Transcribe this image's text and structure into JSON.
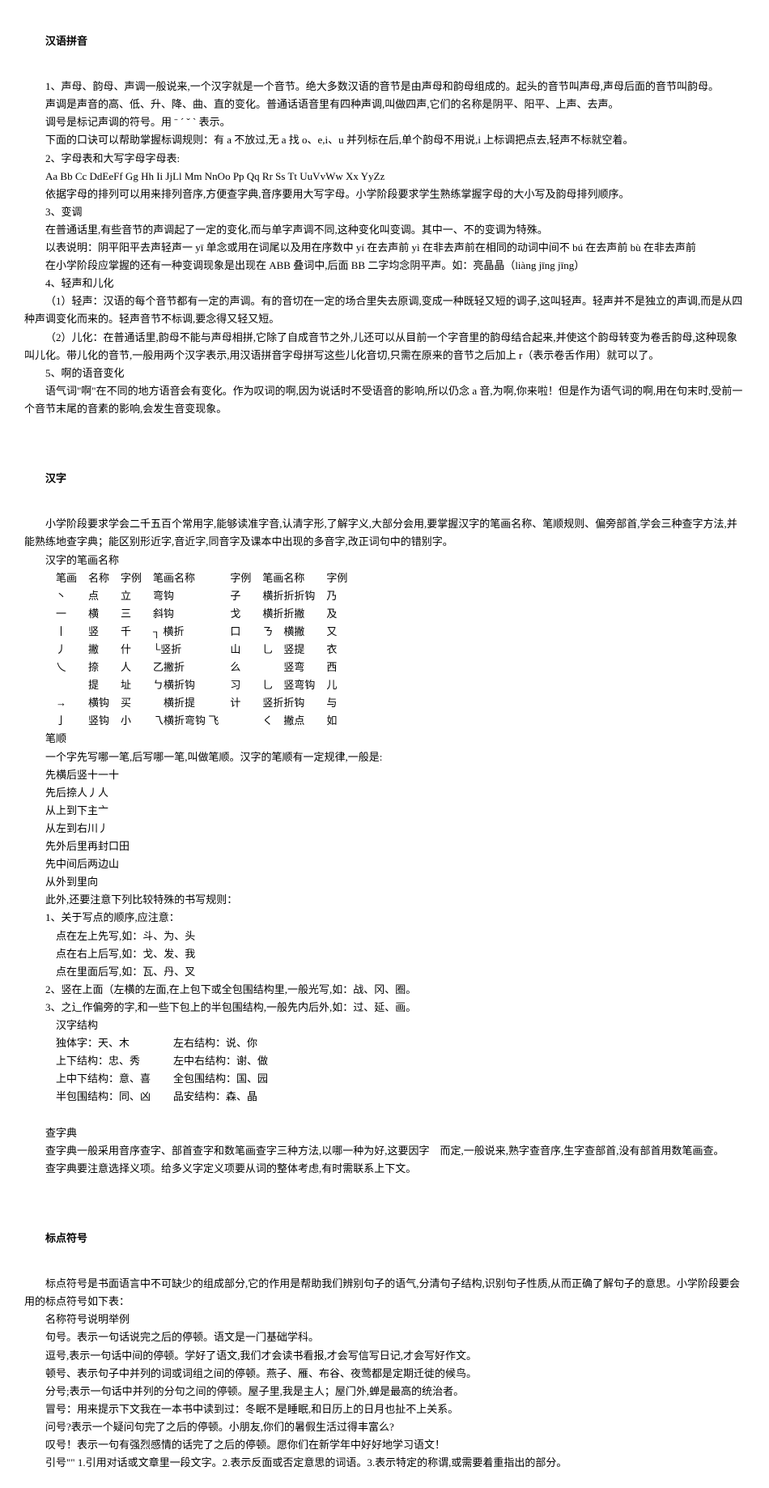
{
  "sections": {
    "pinyin": {
      "title": "汉语拼音",
      "p1": "1、声母、韵母、声调一般说来,一个汉字就是一个音节。绝大多数汉语的音节是由声母和韵母组成的。起头的音节叫声母,声母后面的音节叫韵母。",
      "p2": "声调是声音的高、低、升、降、曲、直的变化。普通话语音里有四种声调,叫做四声,它们的名称是阴平、阳平、上声、去声。",
      "p3": "调号是标记声调的符号。用 ˉ ˊ ˇ ˋ 表示。",
      "p4": "下面的口诀可以帮助掌握标调规则：有 a 不放过,无 a 找 o、e,i、u 并列标在后,单个韵母不用说,i 上标调把点去,轻声不标就空着。",
      "p5": "2、字母表和大写字母字母表:",
      "p6": "Aa Bb Cc DdEeFf Gg Hh Ii JjLl Mm NnOo Pp Qq Rr Ss Tt UuVvWw Xx YyZz",
      "p7": "依据字母的排列可以用来排列音序,方便查字典,音序要用大写字母。小学阶段要求学生熟练掌握字母的大小写及韵母排列顺序。",
      "p8": "3、变调",
      "p9": "在普通话里,有些音节的声调起了一定的变化,而与单字声调不同,这种变化叫变调。其中一、不的变调为特殊。",
      "p10": "以表说明：阴平阳平去声轻声一 yī 单念或用在词尾以及用在序数中 yí 在去声前 yì 在非去声前在相同的动词中间不 bú 在去声前 bù 在非去声前",
      "p11": "在小学阶段应掌握的还有一种变调现象是出现在 ABB 叠词中,后面 BB 二字均念阴平声。如：亮晶晶（liàng jīng jīng）",
      "p12": "4、轻声和儿化",
      "p13": "（1）轻声：汉语的每个音节都有一定的声调。有的音切在一定的场合里失去原调,变成一种既轻又短的调子,这叫轻声。轻声并不是独立的声调,而是从四种声调变化而来的。轻声音节不标调,要念得又轻又短。",
      "p14": "（2）儿化：在普通话里,韵母不能与声母相拼,它除了自成音节之外,儿还可以从目前一个字音里的韵母结合起来,并使这个韵母转变为卷舌韵母,这种现象叫儿化。带儿化的音节,一般用两个汉字表示,用汉语拼音字母拼写这些儿化音切,只需在原来的音节之后加上 r（表示卷舌作用）就可以了。",
      "p15": "5、啊的语音变化",
      "p16": "语气词\"啊\"在不同的地方语音会有变化。作为叹词的啊,因为说话时不受语音的影响,所以仍念 a 音,为啊,你来啦！但是作为语气词的啊,用在句末时,受前一个音节末尾的音素的影响,会发生音变现象。"
    },
    "hanzi": {
      "title": "汉字",
      "intro1": "小学阶段要求学会二千五百个常用字,能够读准字音,认清字形,了解字义,大部分会用,要掌握汉字的笔画名称、笔顺规则、偏旁部首,学会三种查字方法,并能熟练地查字典；能区别形近字,音近字,同音字及课本中出现的多音字,改正词句中的错别字。",
      "bihua_label": "汉字的笔画名称",
      "table_head": [
        "笔画",
        "名称",
        "字例",
        "笔画名称",
        "字例",
        "笔画名称",
        "字例"
      ],
      "table_rows": [
        [
          "丶",
          "点",
          "立",
          "弯钩",
          "子",
          "横折折折钩",
          "乃"
        ],
        [
          "一",
          "横",
          "三",
          "斜钩",
          "戈",
          "横折折撇",
          "及"
        ],
        [
          "丨",
          "竖",
          "千",
          "┐ 横折",
          "口",
          "ㄋ　横撇",
          "又"
        ],
        [
          "丿",
          "撇",
          "什",
          "└竖折",
          "山",
          "乚　竖提",
          "衣"
        ],
        [
          "乀",
          "捺",
          "人",
          "乙撇折",
          "么",
          "　　竖弯",
          "西"
        ],
        [
          "",
          "提",
          "址",
          "ㄅ横折钩",
          "习",
          "乚　竖弯钩",
          "儿"
        ],
        [
          "→",
          "横钩",
          "买",
          "　横折提",
          "计",
          "竖折折钩",
          "与"
        ],
        [
          "亅",
          "竖钩",
          "小",
          "乁横折弯钩 飞",
          "",
          "く　撇点",
          "如"
        ]
      ],
      "bishun_label": "笔顺",
      "bishun_intro": "一个字先写哪一笔,后写哪一笔,叫做笔顺。汉字的笔顺有一定规律,一般是:",
      "rules": [
        "先横后竖十一十",
        "先后捺人丿人",
        "从上到下主亠",
        "从左到右川丿",
        "先外后里再封口田",
        "先中间后两边山",
        "从外到里向"
      ],
      "special_intro": "此外,还要注意下列比较特殊的书写规则：",
      "sp1": "1、关于写点的顺序,应注意：",
      "sp1a": "点在左上先写,如：斗、为、头",
      "sp1b": "点在右上后写,如：戈、发、我",
      "sp1c": "点在里面后写,如：瓦、丹、叉",
      "sp2": "2、竖在上面（左横的左面,在上包下或全包围结构里,一般光写,如：战、冈、圈。",
      "sp3": "3、之辶作偏旁的字,和一些下包上的半包围结构,一般先内后外,如：过、延、画。",
      "struct_label": "汉字结构",
      "struct": [
        [
          "独体字：天、木",
          "左右结构：说、你"
        ],
        [
          "上下结构：忠、秀",
          "左中右结构：谢、做"
        ],
        [
          "上中下结构：意、喜",
          "全包围结构：国、园"
        ],
        [
          "半包围结构：同、凶",
          "品安结构：森、晶"
        ]
      ],
      "cz_label": "查字典",
      "cz1": "查字典一般采用音序查字、部首查字和数笔画查字三种方法,以哪一种为好,这要因字　而定,一般说来,熟字查音序,生字查部首,没有部首用数笔画查。",
      "cz2": "查字典要注意选择义项。给多义字定义项要从词的整体考虑,有时需联系上下文。"
    },
    "biaodian": {
      "title": "标点符号",
      "intro": "标点符号是书面语言中不可缺少的组成部分,它的作用是帮助我们辨别句子的语气,分清句子结构,识别句子性质,从而正确了解句子的意思。小学阶段要会用的标点符号如下表：",
      "head": "名称符号说明举例",
      "items": [
        "句号。表示一句话说完之后的停顿。语文是一门基础学科。",
        "逗号,表示一句话中间的停顿。学好了语文,我们才会读书看报,才会写信写日记,才会写好作文。",
        "顿号、表示句子中并列的词或词组之间的停顿。燕子、雁、布谷、夜莺都是定期迁徙的候鸟。",
        "分号;表示一句话中并列的分句之间的停顿。屋子里,我是主人；屋门外,蝉是最高的统治者。",
        "冒号：用来提示下文我在一本书中读到过：冬眠不是睡眠,和日历上的日月也扯不上关系。",
        "问号?表示一个疑问句完了之后的停顿。小朋友,你们的暑假生活过得丰富么?",
        "叹号！表示一句有强烈感情的话完了之后的停顿。愿你们在新学年中好好地学习语文！",
        "引号\"\" 1.引用对话或文章里一段文字。2.表示反面或否定意思的词语。3.表示特定的称谓,或需要着重指出的部分。"
      ]
    }
  }
}
